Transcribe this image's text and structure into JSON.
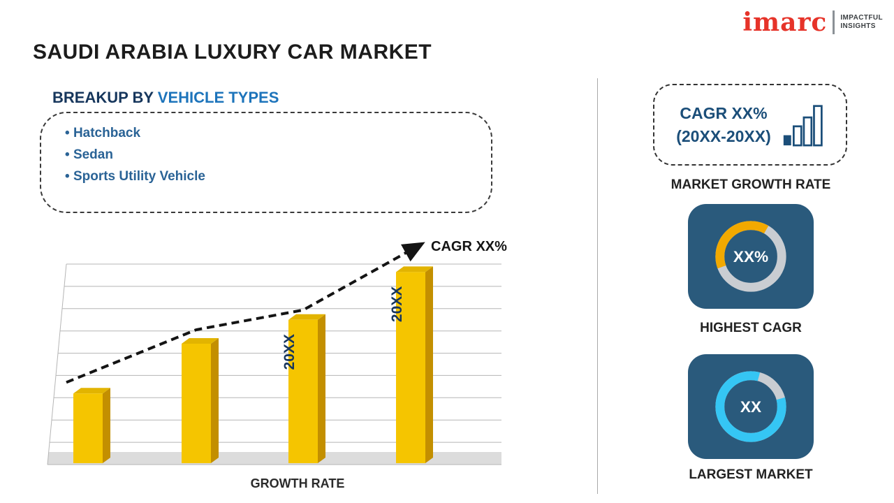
{
  "header": {
    "title": "SAUDI ARABIA LUXURY CAR MARKET",
    "logo": {
      "brand": "imarc",
      "tagline_line1": "IMPACTFUL",
      "tagline_line2": "INSIGHTS",
      "brand_color": "#E63329"
    }
  },
  "breakup": {
    "heading_prefix": "BREAKUP BY ",
    "heading_highlight": "VEHICLE TYPES",
    "items": [
      "Hatchback",
      "Sedan",
      "Sports Utility Vehicle"
    ]
  },
  "chart_data": {
    "type": "bar",
    "title": "",
    "xlabel": "GROWTH RATE",
    "ylabel": "",
    "categories": [
      "",
      "",
      "20XX",
      "20XX"
    ],
    "values": [
      35,
      60,
      72,
      96
    ],
    "ylim": [
      0,
      100
    ],
    "grid": true,
    "legend_position": "none",
    "bar_color": "#F5C500",
    "bar_side_color": "#C38F00",
    "bar_top_color": "#E2B400",
    "trend_label": "CAGR XX%"
  },
  "sidebar": {
    "growth_rate_card": {
      "line1": "CAGR XX%",
      "line2": "(20XX-20XX)",
      "caption": "MARKET GROWTH RATE",
      "icon": "bar-chart-icon",
      "text_color": "#1B4E79"
    },
    "highest_cagr": {
      "value": "XX%",
      "caption": "HIGHEST CAGR",
      "card_color": "#2A5A7C",
      "track_color": "#C9CDD2",
      "arc": {
        "start_deg": 160,
        "sweep_deg": 140,
        "color": "#F2A900"
      }
    },
    "largest_market": {
      "value": "XX",
      "caption": "LARGEST MARKET",
      "card_color": "#2A5A7C",
      "track_color": "#C9CDD2",
      "arc": {
        "start_deg": 345,
        "sweep_deg": 300,
        "color": "#35C6F4"
      }
    }
  },
  "colors": {
    "accent_navy": "#1B4E79",
    "heading_dark": "#16365C",
    "heading_blue": "#1D74BB",
    "bullet_blue": "#2A6396",
    "divider_gray": "#A8A8A8"
  }
}
